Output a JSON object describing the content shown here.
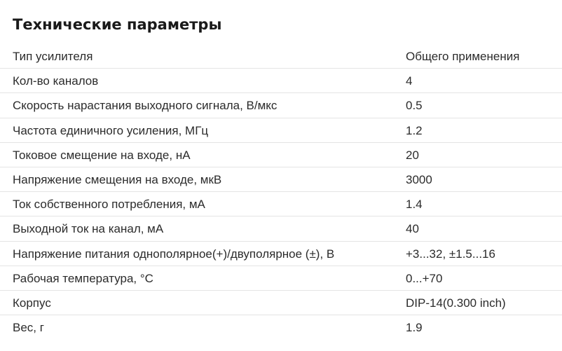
{
  "section": {
    "title": "Технические параметры"
  },
  "specs": [
    {
      "label": "Тип усилителя",
      "value": "Общего применения"
    },
    {
      "label": "Кол-во каналов",
      "value": "4"
    },
    {
      "label": "Скорость нарастания выходного сигнала, В/мкс",
      "value": "0.5"
    },
    {
      "label": "Частота единичного усиления, МГц",
      "value": "1.2"
    },
    {
      "label": "Токовое смещение на входе, нА",
      "value": "20"
    },
    {
      "label": "Напряжение смещения на входе, мкВ",
      "value": "3000"
    },
    {
      "label": "Ток собственного потребления, мА",
      "value": "1.4"
    },
    {
      "label": "Выходной ток на канал, мА",
      "value": "40"
    },
    {
      "label": "Напряжение питания однополярное(+)/двуполярное (±), В",
      "value": "+3...32, ±1.5...16"
    },
    {
      "label": "Рабочая температура, °С",
      "value": "0...+70"
    },
    {
      "label": "Корпус",
      "value": "DIP-14(0.300 inch)"
    },
    {
      "label": "Вес, г",
      "value": "1.9"
    }
  ]
}
